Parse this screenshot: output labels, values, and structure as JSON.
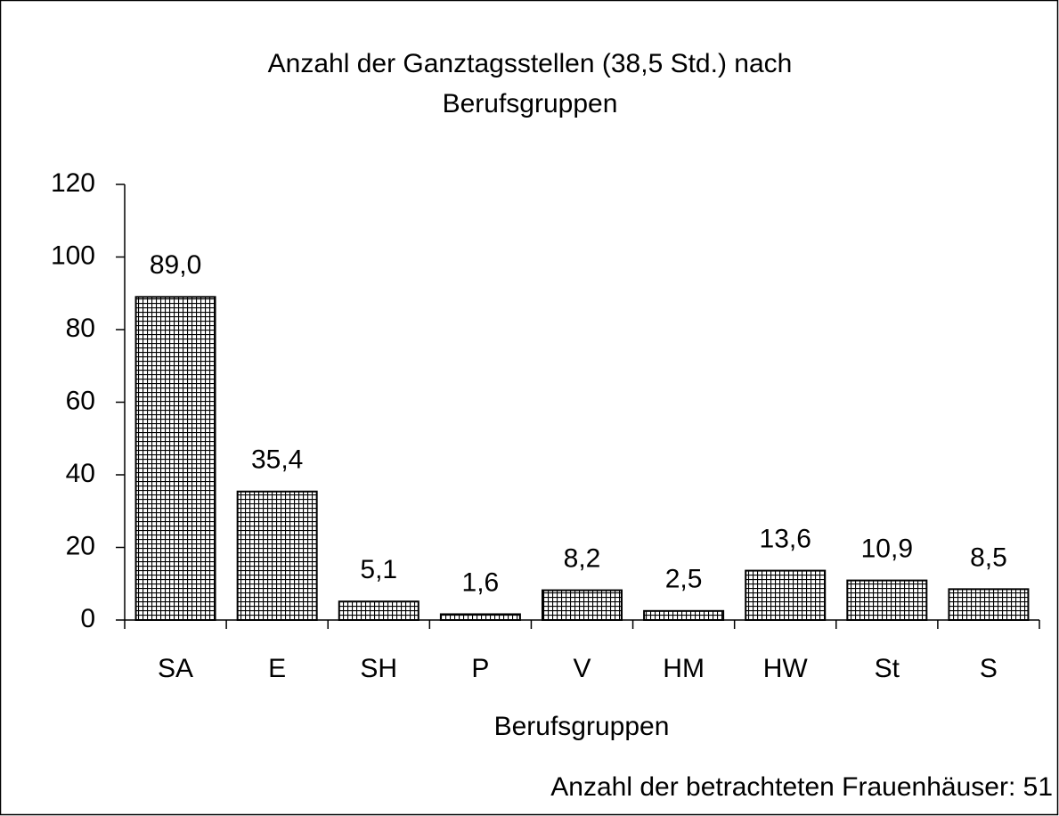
{
  "chart_data": {
    "type": "bar",
    "title": [
      "Anzahl der Ganztagsstellen (38,5 Std.) nach",
      "Berufsgruppen"
    ],
    "x_label": "Berufsgruppen",
    "annotation": "Anzahl der betrachteten Frauenhäuser: 51",
    "categories": [
      "SA",
      "E",
      "SH",
      "P",
      "V",
      "HM",
      "HW",
      "St",
      "S"
    ],
    "values": [
      89.0,
      35.4,
      5.1,
      1.6,
      8.2,
      2.5,
      13.6,
      10.9,
      8.5
    ],
    "value_labels": [
      "89,0",
      "35,4",
      "5,1",
      "1,6",
      "8,2",
      "2,5",
      "13,6",
      "10,9",
      "8,5"
    ],
    "color": "#000000",
    "ylim": [
      0,
      120
    ],
    "yticks": [
      0,
      20,
      40,
      60,
      80,
      100,
      120
    ],
    "grid": false
  }
}
